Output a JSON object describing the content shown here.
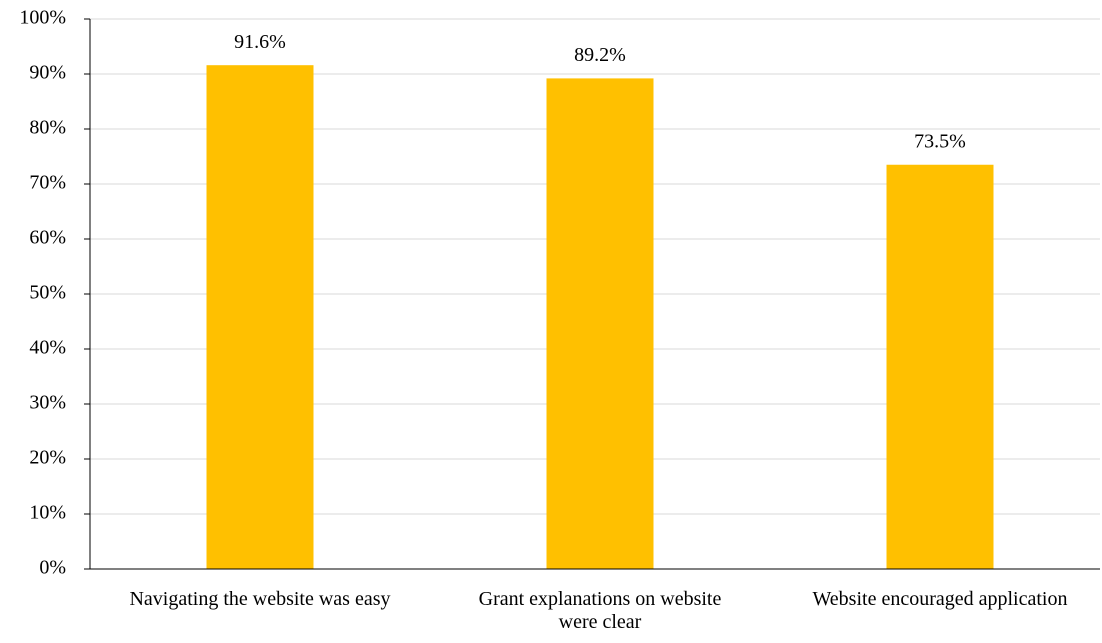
{
  "chart_data": {
    "type": "bar",
    "categories": [
      "Navigating the website was easy",
      "Grant explanations on website were clear",
      "Website encouraged application"
    ],
    "values": [
      91.6,
      89.2,
      73.5
    ],
    "value_labels": [
      "91.6%",
      "89.2%",
      "73.5%"
    ],
    "color": "#ffc000",
    "ylim": [
      0,
      100
    ],
    "yticks": [
      {
        "value": 0,
        "label": "0%"
      },
      {
        "value": 10,
        "label": "10%"
      },
      {
        "value": 20,
        "label": "20%"
      },
      {
        "value": 30,
        "label": "30%"
      },
      {
        "value": 40,
        "label": "40%"
      },
      {
        "value": 50,
        "label": "50%"
      },
      {
        "value": 60,
        "label": "60%"
      },
      {
        "value": 70,
        "label": "70%"
      },
      {
        "value": 80,
        "label": "80%"
      },
      {
        "value": 90,
        "label": "90%"
      },
      {
        "value": 100,
        "label": "100%"
      }
    ],
    "grid": true
  }
}
